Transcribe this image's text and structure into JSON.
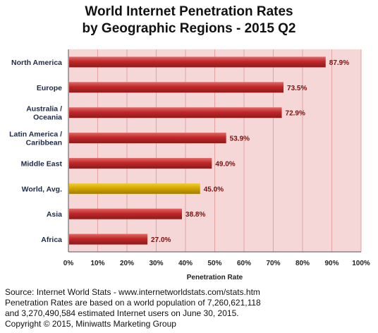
{
  "chart_data": {
    "type": "bar",
    "orientation": "horizontal",
    "title": "World Internet Penetration Rates",
    "subtitle": "by Geographic Regions - 2015 Q2",
    "xlabel": "Penetration Rate",
    "ylabel": "",
    "xlim": [
      0,
      100
    ],
    "x_ticks": [
      "0%",
      "10%",
      "20%",
      "30%",
      "40%",
      "50%",
      "60%",
      "70%",
      "80%",
      "90%",
      "100%"
    ],
    "grid": true,
    "categories": [
      "North America",
      "Europe",
      "Australia / Oceania",
      "Latin America / Caribbean",
      "Middle East",
      "World, Avg.",
      "Asia",
      "Africa"
    ],
    "category_lines": [
      [
        "North America"
      ],
      [
        "Europe"
      ],
      [
        "Australia /",
        "Oceania"
      ],
      [
        "Latin America /",
        "Caribbean"
      ],
      [
        "Middle East"
      ],
      [
        "World, Avg."
      ],
      [
        "Asia"
      ],
      [
        "Africa"
      ]
    ],
    "values": [
      87.9,
      73.5,
      72.9,
      53.9,
      49.0,
      45.0,
      38.8,
      27.0
    ],
    "value_labels": [
      "87.9%",
      "73.5%",
      "72.9%",
      "53.9%",
      "49.0%",
      "45.0%",
      "38.8%",
      "27.0%"
    ],
    "highlight_category": "World, Avg.",
    "colors": {
      "bar": "#c0282a",
      "highlight_bar": "#d4a800",
      "plot_bg": "#f4d7d6",
      "grid": "#e2a3a1",
      "category_label": "#1f2a44",
      "value_label": "#7a1010"
    }
  },
  "footer": {
    "line1": "Source: Internet World Stats - www.internetworldstats.com/stats.htm",
    "line2": "Penetration Rates are based on a world population of 7,260,621,118",
    "line3": "and 3,270,490,584 estimated Internet users on June 30, 2015.",
    "line4": "Copyright © 2015, Miniwatts Marketing Group"
  }
}
